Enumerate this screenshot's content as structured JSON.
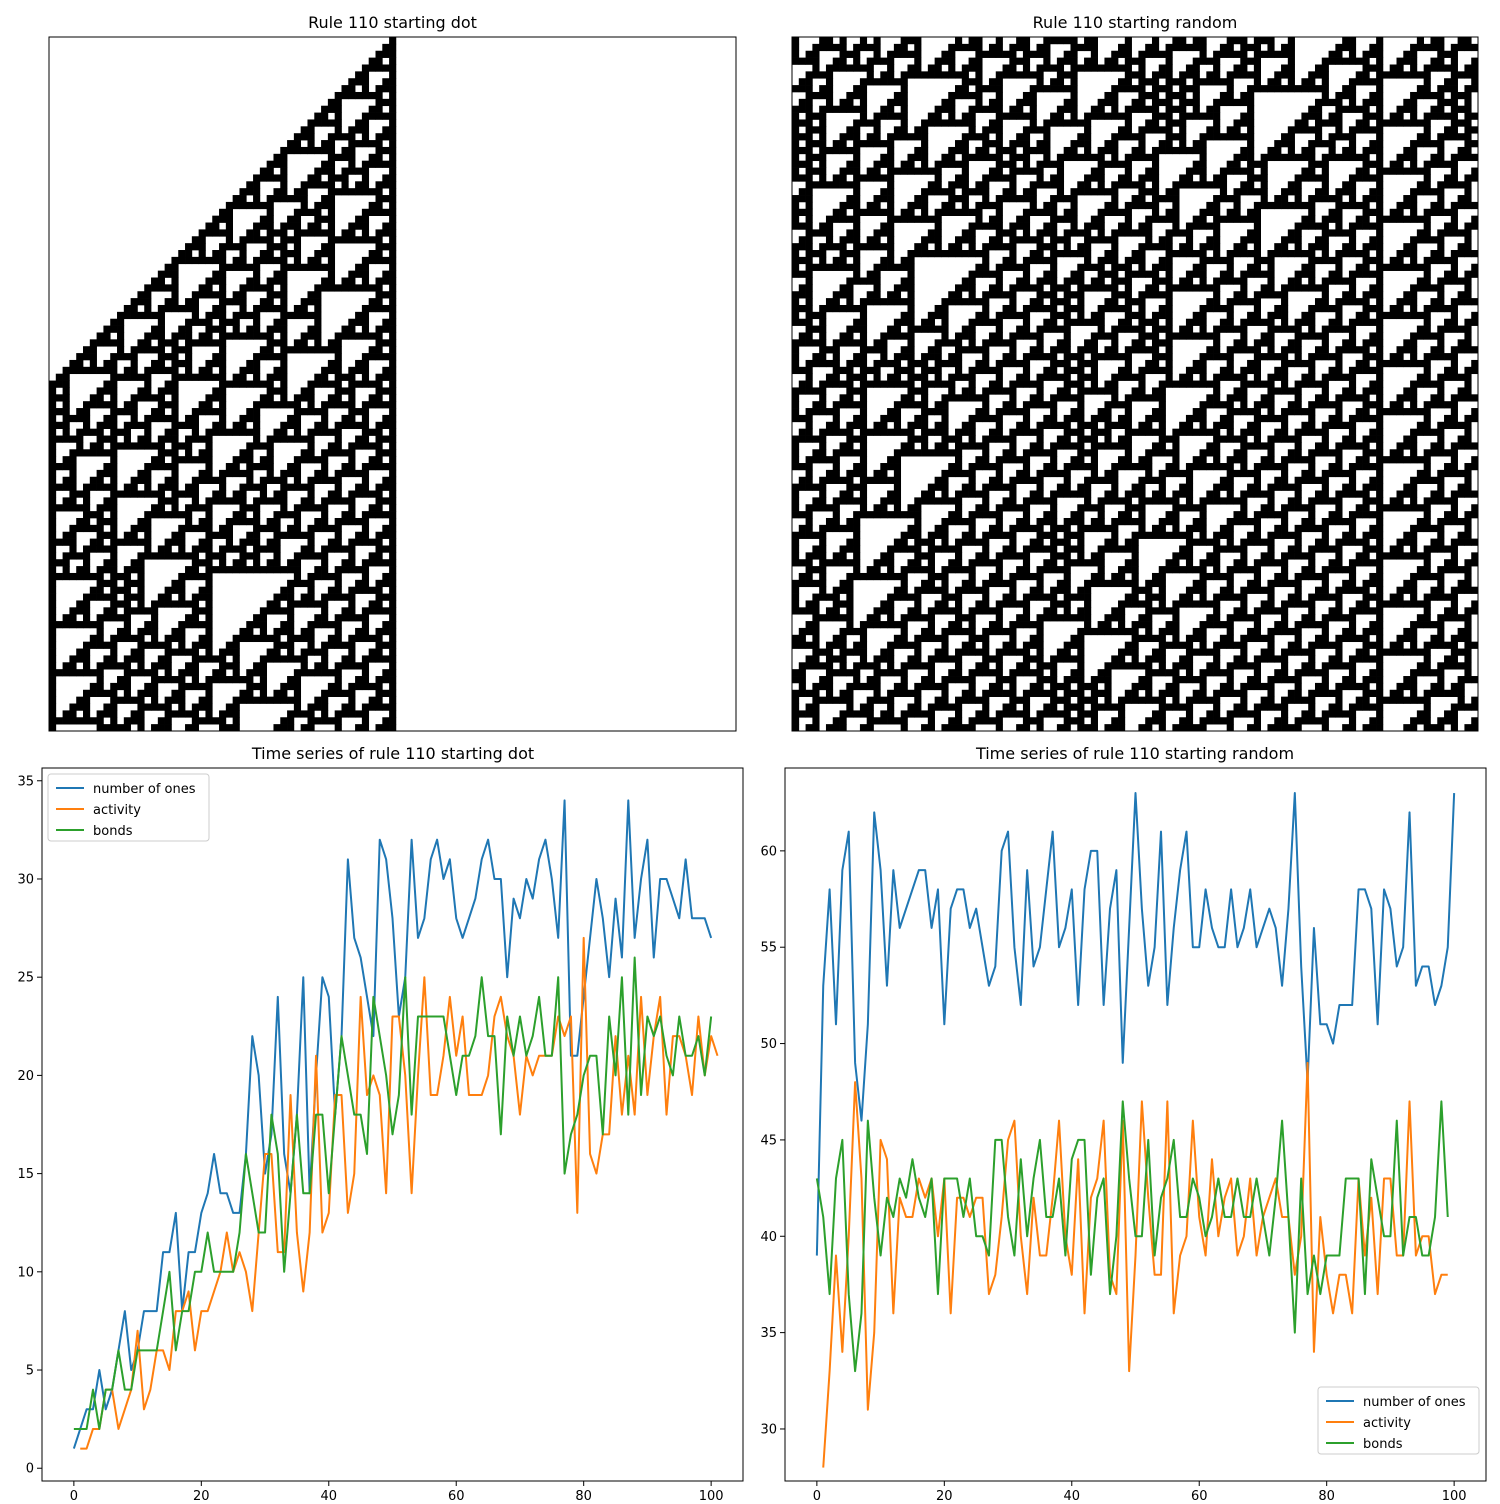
{
  "chart_data": [
    {
      "type": "heatmap",
      "title": "Rule 110 starting dot",
      "rule": 110,
      "initial_condition": "dot",
      "cells_wide": 101,
      "generations": 101,
      "colors": {
        "one": "#000000",
        "zero": "#ffffff"
      },
      "axes_visible": false
    },
    {
      "type": "heatmap",
      "title": "Rule 110 starting random",
      "rule": 110,
      "initial_condition": "random",
      "cells_wide": 101,
      "generations": 101,
      "colors": {
        "one": "#000000",
        "zero": "#ffffff"
      },
      "axes_visible": false
    },
    {
      "type": "line",
      "title": "Time series of rule 110 starting dot",
      "xlabel": "",
      "ylabel": "",
      "xlim": [
        -5,
        105
      ],
      "ylim": [
        -0.65,
        35.65
      ],
      "xticks": [
        0,
        20,
        40,
        60,
        80,
        100
      ],
      "yticks": [
        0,
        5,
        10,
        15,
        20,
        25,
        30,
        35
      ],
      "legend": "upper-left",
      "grid": false,
      "series": [
        {
          "name": "number of ones",
          "color": "#1f77b4",
          "x_start": 0,
          "values": [
            1,
            2,
            3,
            3,
            5,
            3,
            4,
            6,
            8,
            5,
            6,
            8,
            8,
            8,
            11,
            11,
            13,
            8,
            11,
            11,
            13,
            14,
            16,
            14,
            14,
            13,
            13,
            16,
            22,
            20,
            15,
            17,
            24,
            16,
            14,
            18,
            25,
            14,
            20,
            25,
            24,
            18,
            22,
            31,
            27,
            26,
            24,
            22,
            32,
            31,
            28,
            23,
            25,
            32,
            27,
            28,
            31,
            32,
            30,
            31,
            28,
            27,
            28,
            29,
            31,
            32,
            30,
            30,
            25,
            29,
            28,
            30,
            29,
            31,
            32,
            30,
            27,
            34,
            21,
            21,
            24,
            27,
            30,
            28,
            25,
            29,
            26,
            34,
            27,
            30,
            32,
            26,
            30,
            30,
            29,
            28,
            31,
            28,
            28,
            28,
            27
          ]
        },
        {
          "name": "activity",
          "color": "#ff7f0e",
          "x_start": 1,
          "values": [
            1,
            1,
            2,
            2,
            4,
            4,
            2,
            3,
            4,
            7,
            3,
            4,
            6,
            6,
            5,
            8,
            8,
            9,
            6,
            8,
            8,
            9,
            10,
            12,
            10,
            11,
            10,
            8,
            12,
            16,
            16,
            11,
            11,
            19,
            12,
            9,
            12,
            21,
            12,
            13,
            19,
            19,
            13,
            15,
            24,
            19,
            20,
            19,
            14,
            23,
            23,
            20,
            14,
            20,
            25,
            19,
            19,
            21,
            24,
            21,
            23,
            19,
            19,
            19,
            20,
            23,
            24,
            22,
            21,
            18,
            21,
            20,
            21,
            21,
            21,
            23,
            22,
            23,
            13,
            27,
            16,
            15,
            17,
            17,
            22,
            18,
            21,
            18,
            24,
            19,
            22,
            24,
            18,
            22,
            22,
            21,
            19,
            23,
            20,
            22,
            21
          ]
        },
        {
          "name": "bonds",
          "color": "#2ca02c",
          "x_start": 0,
          "values": [
            2,
            2,
            2,
            4,
            2,
            4,
            4,
            6,
            4,
            4,
            6,
            6,
            6,
            6,
            8,
            10,
            6,
            8,
            8,
            10,
            10,
            12,
            10,
            10,
            10,
            10,
            12,
            16,
            14,
            12,
            12,
            18,
            16,
            10,
            14,
            18,
            14,
            14,
            18,
            18,
            14,
            18,
            22,
            20,
            18,
            18,
            16,
            24,
            22,
            20,
            17,
            19,
            25,
            18,
            23,
            23,
            23,
            23,
            23,
            21,
            19,
            21,
            21,
            22,
            25,
            22,
            22,
            17,
            23,
            21,
            23,
            21,
            22,
            24,
            21,
            21,
            25,
            15,
            17,
            18,
            20,
            21,
            21,
            17,
            23,
            20,
            25,
            18,
            26,
            19,
            23,
            22,
            23,
            21,
            20,
            23,
            21,
            21,
            22,
            20,
            23
          ]
        }
      ]
    },
    {
      "type": "line",
      "title": "Time series of rule 110 starting random",
      "xlabel": "",
      "ylabel": "",
      "xlim": [
        -5,
        105
      ],
      "ylim": [
        27.3,
        64.3
      ],
      "xticks": [
        0,
        20,
        40,
        60,
        80,
        100
      ],
      "yticks": [
        30,
        35,
        40,
        45,
        50,
        55,
        60
      ],
      "legend": "lower-right",
      "grid": false,
      "series": [
        {
          "name": "number of ones",
          "color": "#1f77b4",
          "x_start": 0,
          "values": [
            39,
            53,
            58,
            51,
            59,
            61,
            49,
            46,
            51,
            62,
            59,
            53,
            59,
            56,
            57,
            58,
            59,
            59,
            56,
            58,
            51,
            57,
            58,
            58,
            56,
            57,
            55,
            53,
            54,
            60,
            61,
            55,
            52,
            59,
            54,
            55,
            58,
            61,
            55,
            56,
            58,
            52,
            58,
            60,
            60,
            52,
            57,
            59,
            49,
            56,
            63,
            57,
            53,
            55,
            61,
            52,
            56,
            59,
            61,
            55,
            55,
            58,
            56,
            55,
            55,
            58,
            55,
            56,
            58,
            55,
            56,
            57,
            56,
            53,
            57,
            63,
            54,
            48,
            56,
            51,
            51,
            50,
            52,
            52,
            52,
            58,
            58,
            57,
            51,
            58,
            57,
            54,
            55,
            62,
            53,
            54,
            54,
            52,
            53,
            55,
            63
          ]
        },
        {
          "name": "activity",
          "color": "#ff7f0e",
          "x_start": 1,
          "values": [
            28,
            33,
            39,
            34,
            40,
            48,
            43,
            31,
            35,
            45,
            44,
            36,
            42,
            41,
            41,
            43,
            42,
            43,
            40,
            43,
            36,
            42,
            42,
            41,
            42,
            42,
            37,
            38,
            41,
            45,
            46,
            40,
            37,
            42,
            39,
            39,
            42,
            46,
            40,
            38,
            44,
            36,
            42,
            43,
            46,
            38,
            37,
            46,
            33,
            39,
            47,
            42,
            38,
            38,
            47,
            36,
            39,
            40,
            46,
            41,
            39,
            44,
            40,
            42,
            43,
            39,
            40,
            43,
            39,
            41,
            42,
            43,
            41,
            41,
            38,
            40,
            49,
            34,
            41,
            38,
            36,
            38,
            38,
            36,
            43,
            39,
            42,
            37,
            43,
            43,
            39,
            39,
            47,
            39,
            40,
            40,
            37,
            38,
            38
          ]
        },
        {
          "name": "bonds",
          "color": "#2ca02c",
          "x_start": 0,
          "values": [
            43,
            41,
            37,
            43,
            45,
            37,
            33,
            36,
            46,
            42,
            39,
            42,
            41,
            43,
            42,
            44,
            42,
            41,
            43,
            37,
            43,
            43,
            43,
            41,
            43,
            40,
            40,
            39,
            45,
            45,
            41,
            39,
            44,
            40,
            43,
            45,
            41,
            41,
            43,
            39,
            44,
            45,
            45,
            38,
            42,
            43,
            37,
            40,
            47,
            43,
            40,
            40,
            45,
            39,
            42,
            43,
            45,
            41,
            41,
            43,
            42,
            40,
            41,
            43,
            41,
            41,
            43,
            41,
            41,
            43,
            41,
            39,
            42,
            46,
            41,
            35,
            43,
            37,
            39,
            37,
            39,
            39,
            39,
            43,
            43,
            43,
            37,
            44,
            42,
            40,
            40,
            46,
            39,
            41,
            41,
            39,
            39,
            41,
            47,
            41
          ]
        }
      ]
    }
  ]
}
